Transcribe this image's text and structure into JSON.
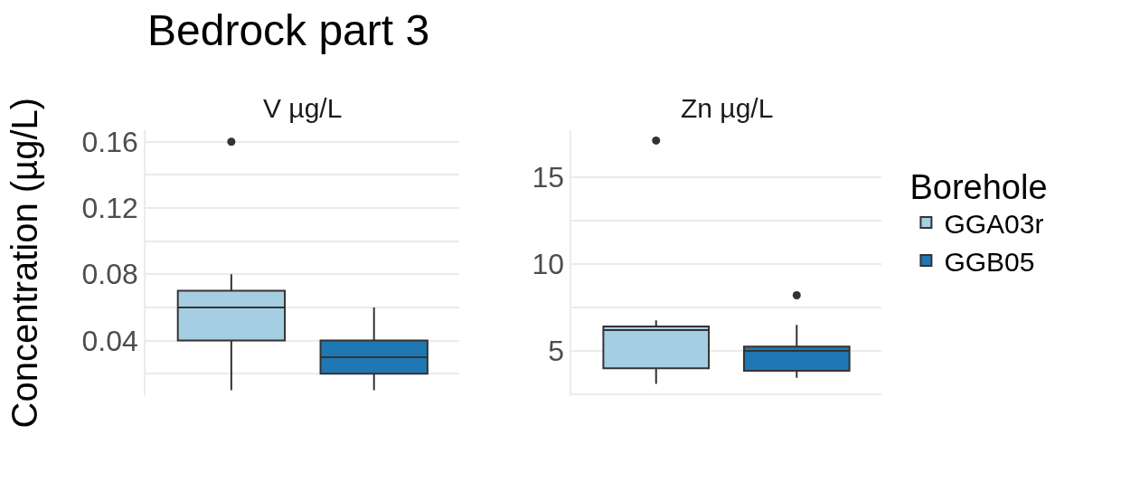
{
  "chart_data": [
    {
      "type": "box",
      "title": "Bedrock part 3",
      "subtitle": "V µg/L",
      "ylabel": "Concentration (µg/L)",
      "categories": [
        null,
        null
      ],
      "series": [
        {
          "color": "#a6cee3",
          "boxes": [
            {
              "low": 0.01,
              "q1": 0.04,
              "median": 0.06,
              "q3": 0.07,
              "high": 0.08,
              "outliers": [
                0.16
              ]
            },
            null
          ]
        },
        {
          "color": "#1f78b4",
          "boxes": [
            null,
            {
              "low": 0.01,
              "q1": 0.02,
              "median": 0.03,
              "q3": 0.04,
              "high": 0.06
            }
          ]
        }
      ],
      "ylim": [
        0.0065,
        0.167
      ],
      "yticks": [
        {
          "value": 0.02,
          "label": null
        },
        0.04,
        {
          "value": 0.06,
          "label": null
        },
        0.08,
        {
          "value": 0.1,
          "label": null
        },
        0.12,
        {
          "value": 0.14,
          "label": null
        },
        0.16
      ],
      "grid": true
    },
    {
      "type": "box",
      "subtitle": "Zn µg/L",
      "legend_title": "Borehole",
      "categories": [
        null,
        null
      ],
      "series": [
        {
          "name": "GGA03r",
          "color": "#a6cee3",
          "boxes": [
            {
              "low": 3.1,
              "q1": 4.0,
              "median": 6.2,
              "q3": 6.4,
              "high": 6.75,
              "outliers": [
                17.1
              ]
            },
            null
          ]
        },
        {
          "name": "GGB05",
          "color": "#1f78b4",
          "boxes": [
            null,
            {
              "low": 3.45,
              "q1": 3.85,
              "median": 5.0,
              "q3": 5.25,
              "high": 6.5,
              "outliers": [
                8.2
              ]
            }
          ]
        }
      ],
      "ylim": [
        2.4,
        17.7
      ],
      "yticks": [
        {
          "value": 2.5,
          "label": null
        },
        5,
        {
          "value": 7.5,
          "label": null
        },
        10,
        {
          "value": 12.5,
          "label": null
        },
        15
      ],
      "grid": true,
      "legend": "right"
    }
  ]
}
